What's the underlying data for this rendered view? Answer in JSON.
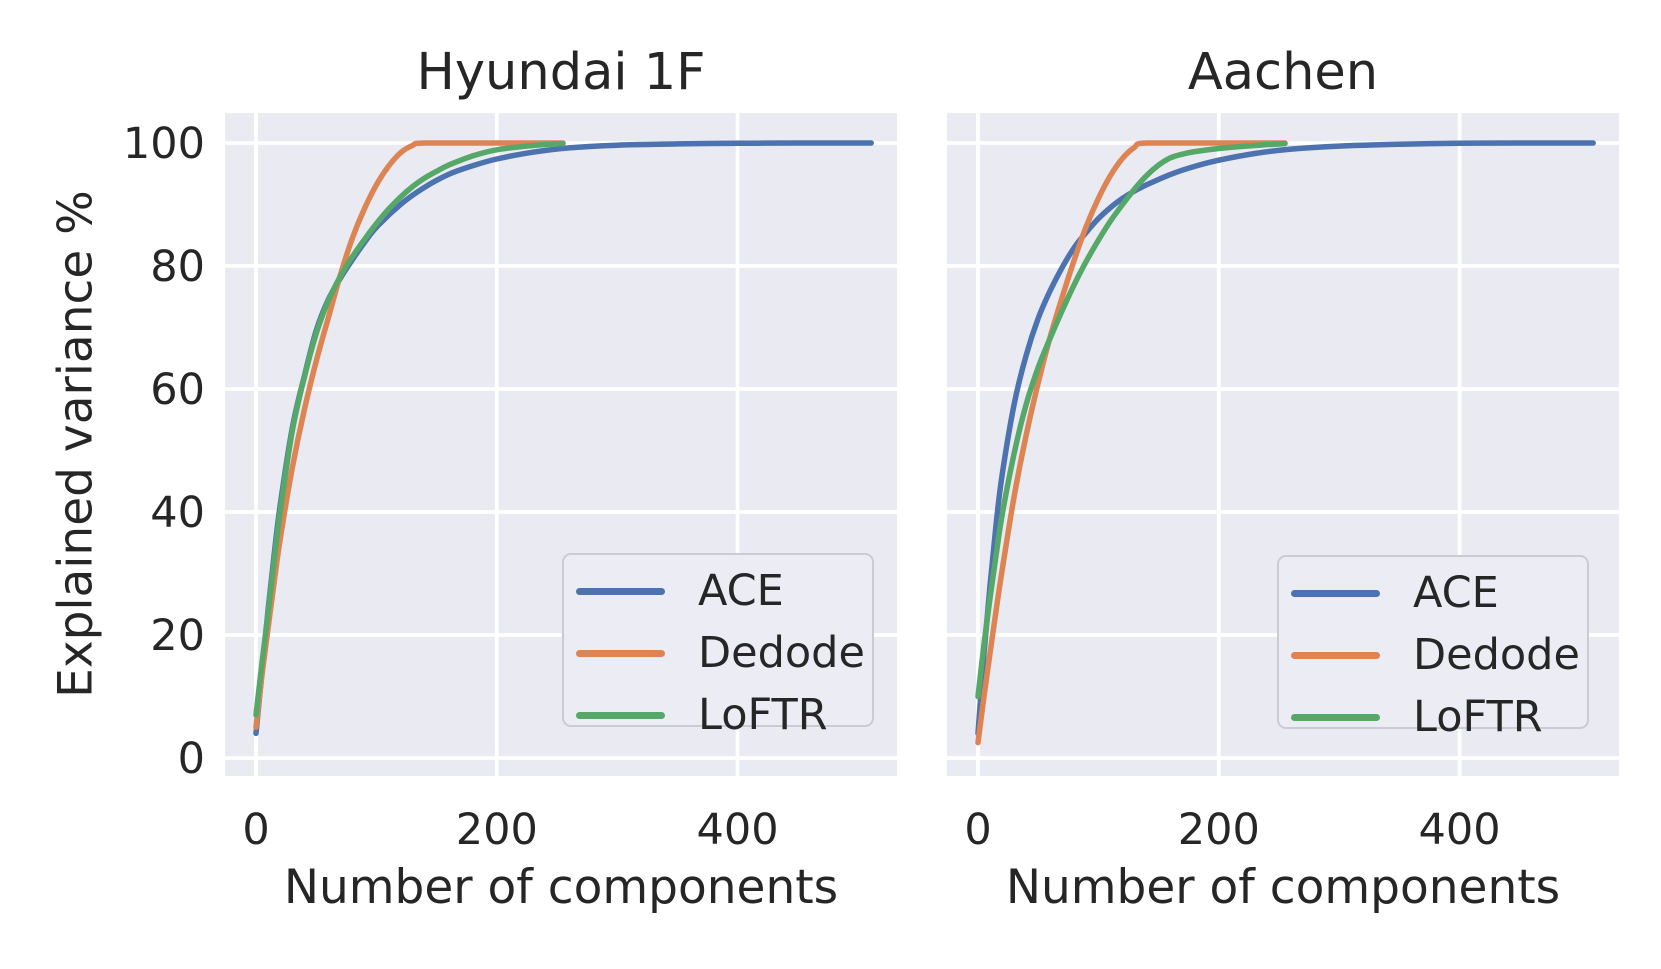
{
  "colors": {
    "axes_background": "#EAEAF2",
    "gridline": "#FFFFFF",
    "text": "#262626",
    "ace": "#4C72B0",
    "dedode": "#DD8452",
    "loftr": "#55A868"
  },
  "chart_data": {
    "type": "line",
    "xlabel": "Number of components",
    "ylabel": "Explained variance %",
    "x_ticks": [
      0,
      200,
      400
    ],
    "y_ticks": [
      0,
      20,
      40,
      60,
      80,
      100
    ],
    "xlim": [
      -25.5,
      537
    ],
    "ylim": [
      -3,
      105
    ],
    "grid": true,
    "legend": [
      "ACE",
      "Dedode",
      "LoFTR"
    ],
    "legend_position": "lower right",
    "subplots": [
      {
        "title": "Hyundai 1F",
        "series": [
          {
            "name": "ACE",
            "color_key": "ace",
            "points": [
              [
                0,
                4
              ],
              [
                5,
                14
              ],
              [
                10,
                24
              ],
              [
                15,
                33
              ],
              [
                20,
                41
              ],
              [
                30,
                53.5
              ],
              [
                40,
                62
              ],
              [
                50,
                69.5
              ],
              [
                60,
                74.5
              ],
              [
                70,
                78
              ],
              [
                80,
                81
              ],
              [
                90,
                83.8
              ],
              [
                100,
                86.3
              ],
              [
                120,
                90
              ],
              [
                140,
                92.8
              ],
              [
                160,
                94.9
              ],
              [
                180,
                96.3
              ],
              [
                200,
                97.4
              ],
              [
                230,
                98.5
              ],
              [
                260,
                99.2
              ],
              [
                300,
                99.65
              ],
              [
                350,
                99.85
              ],
              [
                400,
                99.95
              ],
              [
                450,
                100
              ],
              [
                511,
                100
              ]
            ]
          },
          {
            "name": "Dedode",
            "color_key": "dedode",
            "points": [
              [
                0,
                5
              ],
              [
                5,
                13.5
              ],
              [
                10,
                21
              ],
              [
                15,
                28.5
              ],
              [
                20,
                35.5
              ],
              [
                30,
                47
              ],
              [
                40,
                56.5
              ],
              [
                50,
                64.5
              ],
              [
                60,
                71.5
              ],
              [
                70,
                78.5
              ],
              [
                80,
                84.5
              ],
              [
                90,
                89.3
              ],
              [
                100,
                93.2
              ],
              [
                110,
                96.2
              ],
              [
                120,
                98.4
              ],
              [
                130,
                99.6
              ],
              [
                140,
                100
              ],
              [
                200,
                100
              ],
              [
                255,
                100
              ]
            ]
          },
          {
            "name": "LoFTR",
            "color_key": "loftr",
            "points": [
              [
                0,
                7
              ],
              [
                5,
                15.5
              ],
              [
                10,
                23.5
              ],
              [
                15,
                32
              ],
              [
                20,
                40
              ],
              [
                30,
                53
              ],
              [
                40,
                61.8
              ],
              [
                50,
                69
              ],
              [
                60,
                74.3
              ],
              [
                70,
                78.3
              ],
              [
                80,
                81.5
              ],
              [
                90,
                84.3
              ],
              [
                100,
                86.9
              ],
              [
                110,
                89.2
              ],
              [
                120,
                91.2
              ],
              [
                130,
                92.9
              ],
              [
                140,
                94.3
              ],
              [
                150,
                95.4
              ],
              [
                160,
                96.4
              ],
              [
                180,
                97.9
              ],
              [
                200,
                98.9
              ],
              [
                230,
                99.6
              ],
              [
                255,
                99.9
              ]
            ]
          }
        ]
      },
      {
        "title": "Aachen",
        "series": [
          {
            "name": "ACE",
            "color_key": "ace",
            "points": [
              [
                0,
                4
              ],
              [
                5,
                17
              ],
              [
                10,
                28
              ],
              [
                15,
                38
              ],
              [
                20,
                46
              ],
              [
                30,
                57.5
              ],
              [
                40,
                65.5
              ],
              [
                50,
                71.5
              ],
              [
                60,
                76
              ],
              [
                70,
                79.8
              ],
              [
                80,
                83
              ],
              [
                90,
                85.5
              ],
              [
                100,
                87.7
              ],
              [
                110,
                89.5
              ],
              [
                120,
                91
              ],
              [
                130,
                92.2
              ],
              [
                140,
                93.2
              ],
              [
                160,
                94.9
              ],
              [
                180,
                96.2
              ],
              [
                200,
                97.2
              ],
              [
                230,
                98.3
              ],
              [
                260,
                99
              ],
              [
                300,
                99.5
              ],
              [
                350,
                99.8
              ],
              [
                400,
                99.95
              ],
              [
                450,
                100
              ],
              [
                511,
                100
              ]
            ]
          },
          {
            "name": "Dedode",
            "color_key": "dedode",
            "points": [
              [
                0,
                2.5
              ],
              [
                5,
                10
              ],
              [
                10,
                17
              ],
              [
                15,
                24
              ],
              [
                20,
                30.5
              ],
              [
                30,
                42.5
              ],
              [
                40,
                52.5
              ],
              [
                50,
                61
              ],
              [
                60,
                68.5
              ],
              [
                70,
                75
              ],
              [
                80,
                81
              ],
              [
                90,
                86.5
              ],
              [
                100,
                91
              ],
              [
                110,
                94.7
              ],
              [
                120,
                97.5
              ],
              [
                130,
                99.3
              ],
              [
                140,
                100
              ],
              [
                200,
                100
              ],
              [
                255,
                100
              ]
            ]
          },
          {
            "name": "LoFTR",
            "color_key": "loftr",
            "points": [
              [
                0,
                10
              ],
              [
                5,
                18.5
              ],
              [
                10,
                26
              ],
              [
                15,
                33
              ],
              [
                20,
                39.5
              ],
              [
                30,
                49.5
              ],
              [
                40,
                57.5
              ],
              [
                50,
                63.5
              ],
              [
                60,
                68.3
              ],
              [
                70,
                72.8
              ],
              [
                80,
                77
              ],
              [
                90,
                80.8
              ],
              [
                100,
                84.2
              ],
              [
                110,
                87.3
              ],
              [
                120,
                90
              ],
              [
                130,
                92.5
              ],
              [
                140,
                94.7
              ],
              [
                150,
                96.4
              ],
              [
                160,
                97.6
              ],
              [
                170,
                98.2
              ],
              [
                180,
                98.6
              ],
              [
                200,
                99.1
              ],
              [
                230,
                99.6
              ],
              [
                255,
                99.9
              ]
            ]
          }
        ]
      }
    ]
  }
}
